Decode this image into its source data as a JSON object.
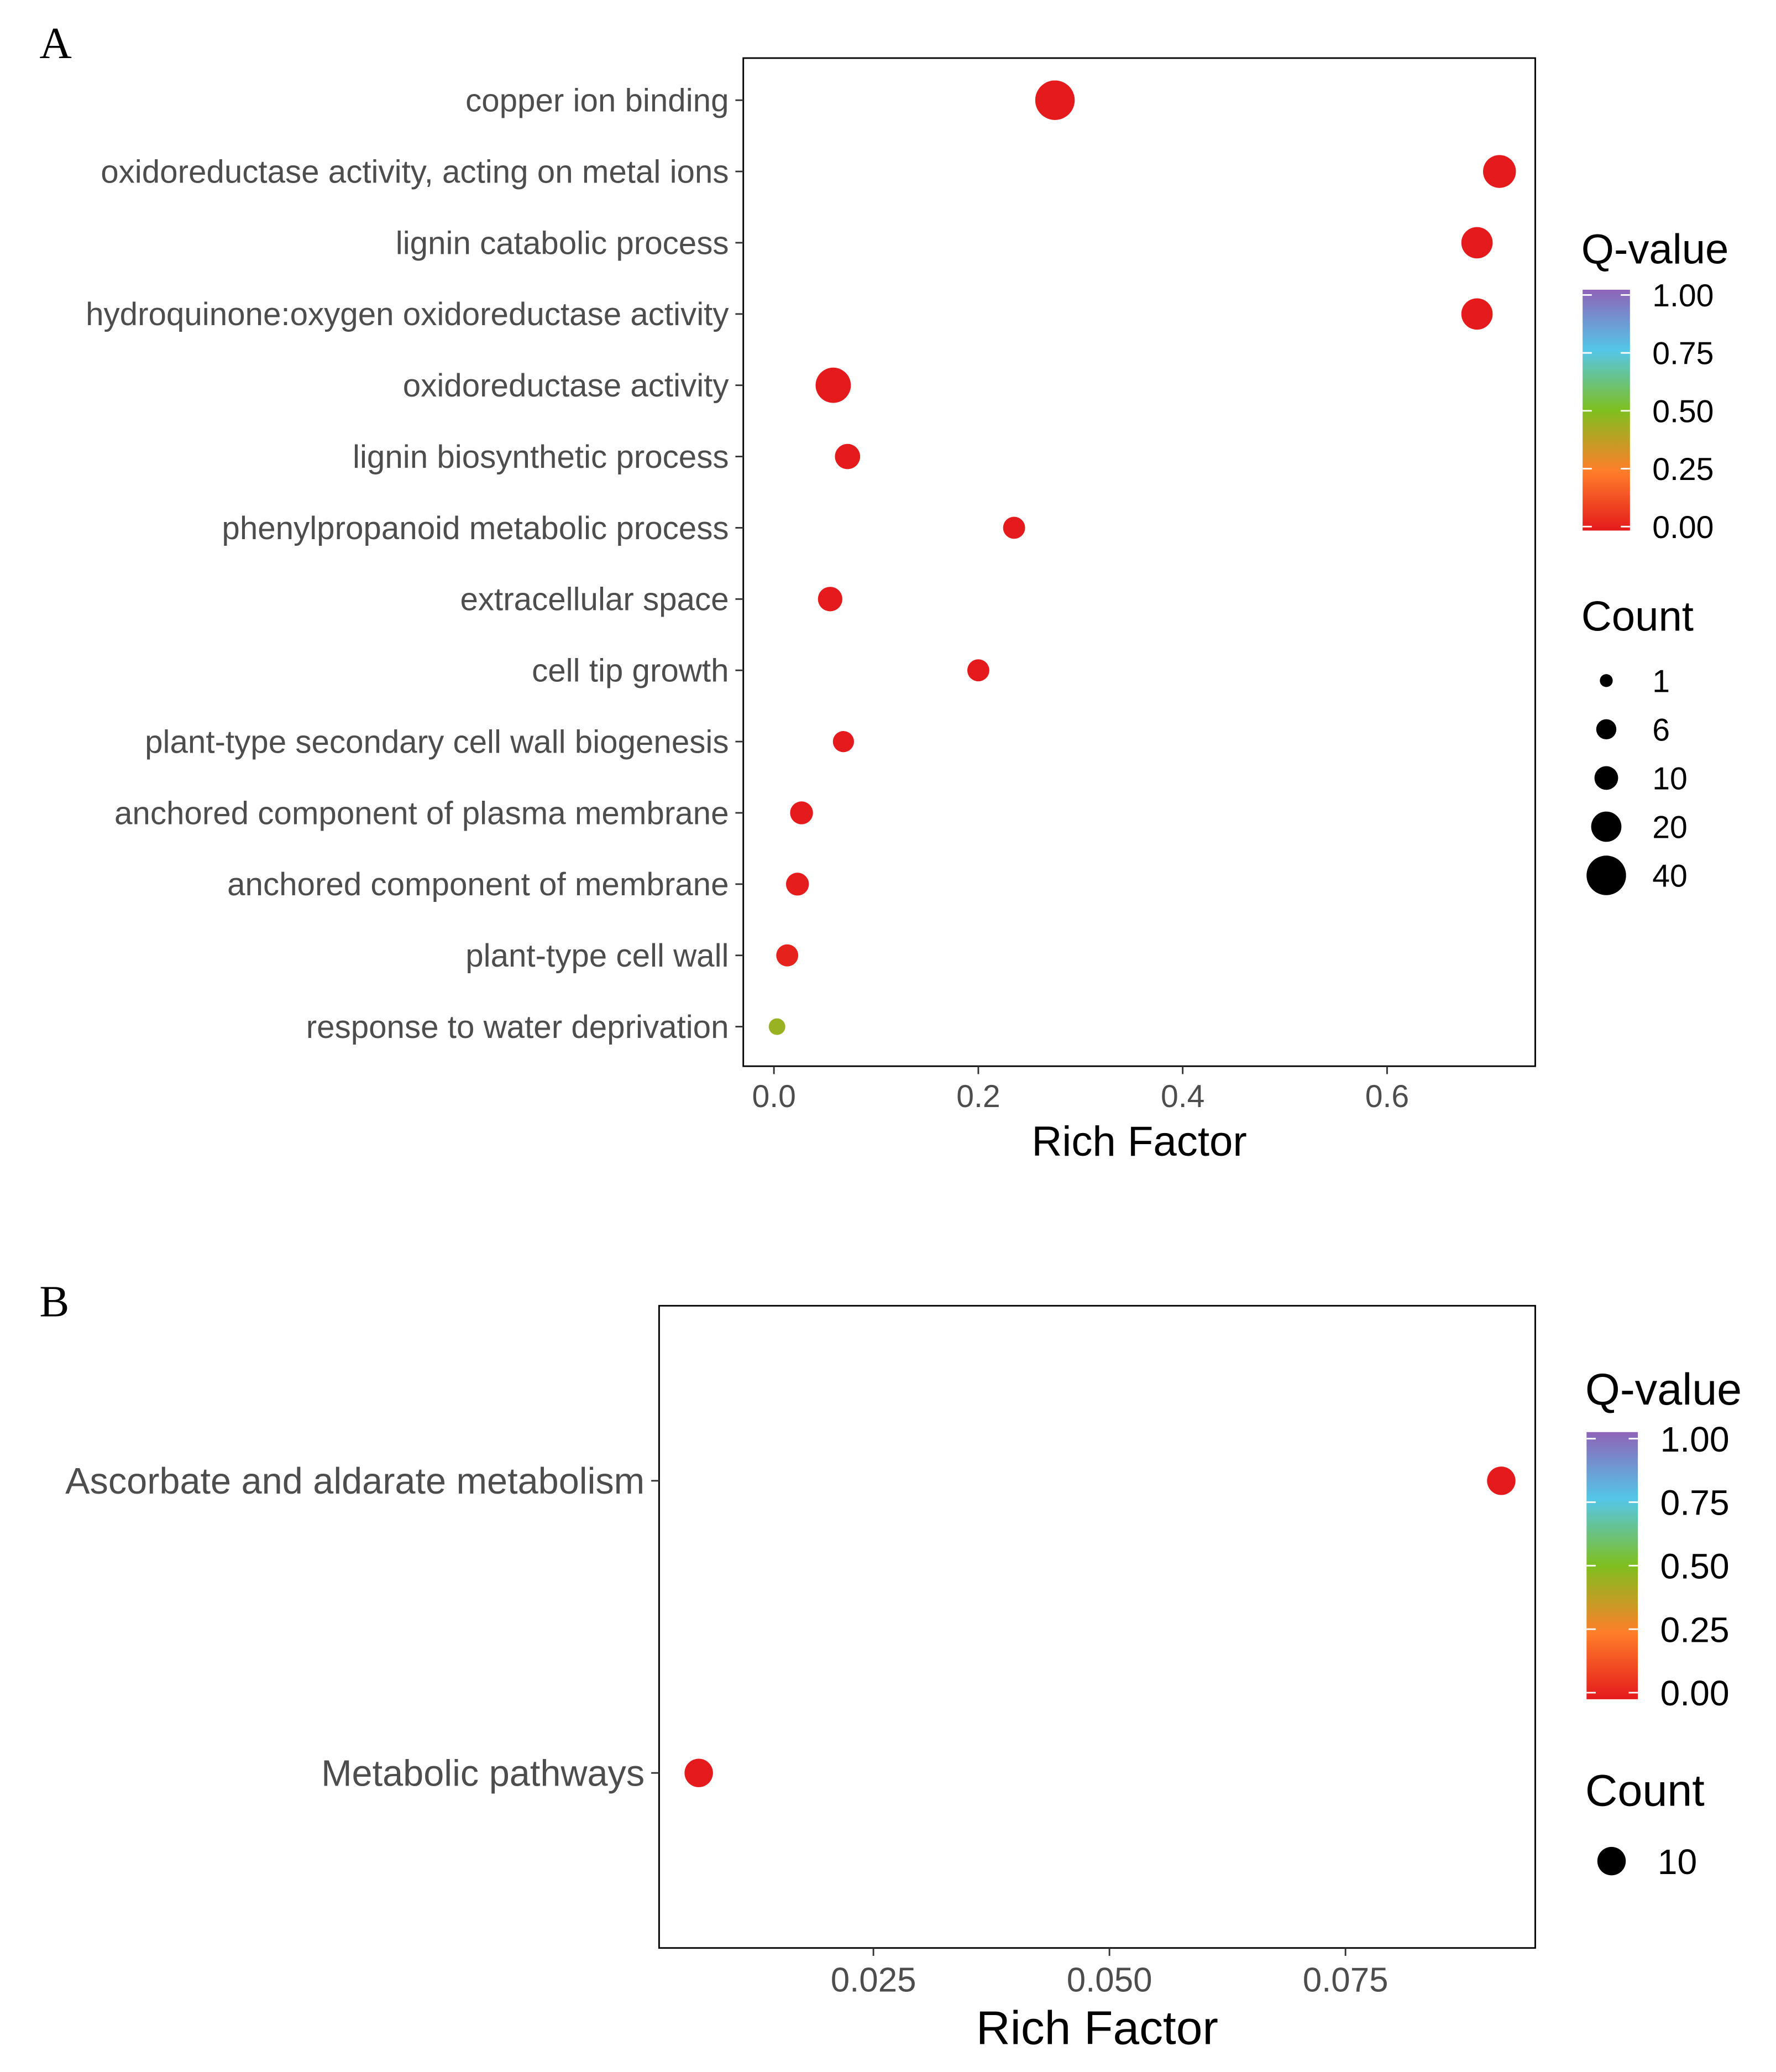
{
  "chart_data": [
    {
      "panel_label": "A",
      "type": "scatter",
      "subtype": "bubble",
      "xlabel": "Rich Factor",
      "ylabel": "",
      "xlim": [
        -0.03,
        0.745
      ],
      "x_ticks": [
        0.0,
        0.2,
        0.4,
        0.6
      ],
      "x_tick_labels": [
        "0.0",
        "0.2",
        "0.4",
        "0.6"
      ],
      "grid": false,
      "legend_position": "right",
      "color_legend": {
        "title": "Q-value",
        "ticks": [
          1.0,
          0.75,
          0.5,
          0.25,
          0.0
        ],
        "tick_labels": [
          "1.00",
          "0.75",
          "0.50",
          "0.25",
          "0.00"
        ],
        "range": [
          0,
          1
        ]
      },
      "size_legend": {
        "title": "Count",
        "labels": [
          "1",
          "6",
          "10",
          "20",
          "40"
        ],
        "values": [
          1,
          6,
          10,
          20,
          40
        ]
      },
      "categories": [
        "copper ion binding",
        "oxidoreductase activity, acting on metal ions",
        "lignin catabolic process",
        "hydroquinone:oxygen oxidoreductase activity",
        "oxidoreductase activity",
        "lignin biosynthetic process",
        "phenylpropanoid metabolic process",
        "extracellular space",
        "cell tip growth",
        "plant-type secondary cell wall biogenesis",
        "anchored component of plasma membrane",
        "anchored component of membrane",
        "plant-type cell wall",
        "response to water deprivation"
      ],
      "x": [
        0.275,
        0.71,
        0.688,
        0.688,
        0.058,
        0.072,
        0.235,
        0.055,
        0.2,
        0.068,
        0.027,
        0.023,
        0.013,
        0.003
      ],
      "counts": [
        40,
        25,
        22,
        22,
        30,
        12,
        8,
        11,
        8,
        7,
        9,
        9,
        8,
        3
      ],
      "qvalues": [
        0.0,
        0.0,
        0.0,
        0.0,
        0.0,
        0.0,
        0.0,
        0.0,
        0.0,
        0.0,
        0.0,
        0.01,
        0.02,
        0.45
      ]
    },
    {
      "panel_label": "B",
      "type": "scatter",
      "subtype": "bubble",
      "xlabel": "Rich Factor",
      "ylabel": "",
      "xlim": [
        0.0023,
        0.0951
      ],
      "x_ticks": [
        0.025,
        0.05,
        0.075
      ],
      "x_tick_labels": [
        "0.025",
        "0.050",
        "0.075"
      ],
      "grid": false,
      "legend_position": "right",
      "color_legend": {
        "title": "Q-value",
        "ticks": [
          1.0,
          0.75,
          0.5,
          0.25,
          0.0
        ],
        "tick_labels": [
          "1.00",
          "0.75",
          "0.50",
          "0.25",
          "0.00"
        ],
        "range": [
          0,
          1
        ]
      },
      "size_legend": {
        "title": "Count",
        "labels": [
          "10"
        ],
        "values": [
          10
        ]
      },
      "categories": [
        "Ascorbate and aldarate metabolism",
        "Metabolic pathways"
      ],
      "x": [
        0.0915,
        0.0065
      ],
      "counts": [
        10,
        10
      ],
      "qvalues": [
        0.0,
        0.0
      ]
    }
  ]
}
